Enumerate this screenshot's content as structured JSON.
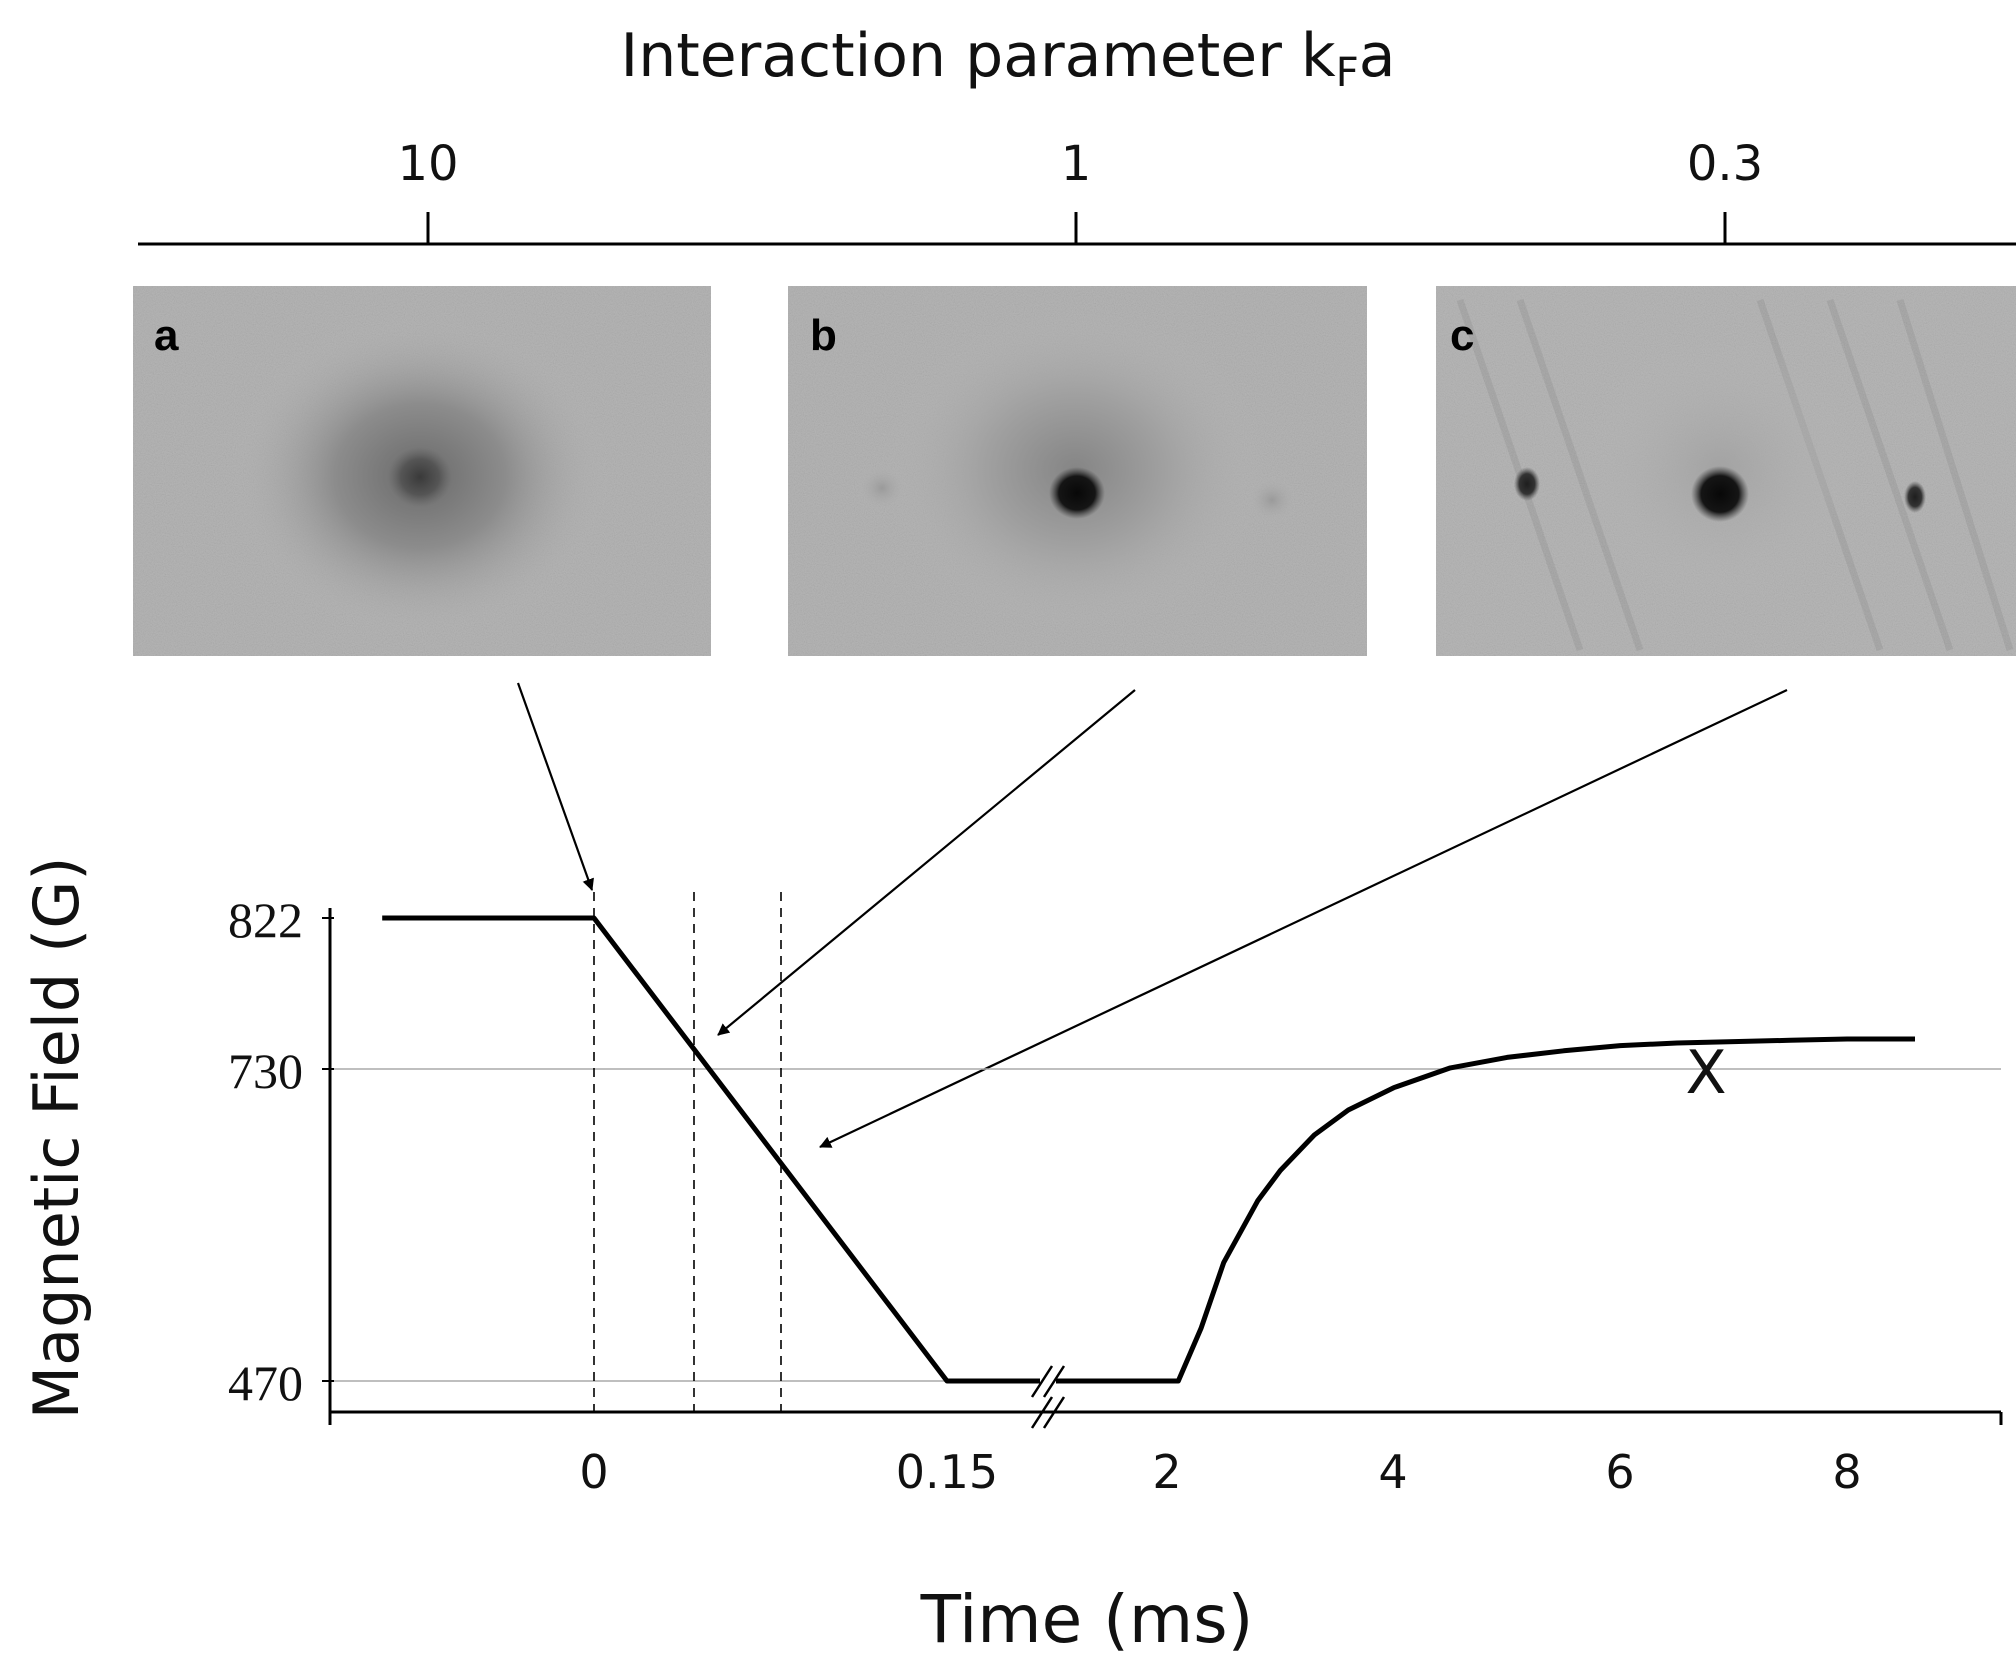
{
  "chart_data": {
    "type": "line",
    "top_axis": {
      "title_main": "Interaction parameter k",
      "title_sub": "F",
      "title_end": "a",
      "ticks": [
        {
          "label": "10",
          "value": 10
        },
        {
          "label": "1",
          "value": 1
        },
        {
          "label": "0.3",
          "value": 0.3
        }
      ]
    },
    "panels": [
      {
        "letter": "a",
        "satellite_peaks": false,
        "points_to_time": 0
      },
      {
        "letter": "b",
        "satellite_peaks": false,
        "points_to_time": 0.04
      },
      {
        "letter": "c",
        "satellite_peaks": true,
        "points_to_time": 0.07
      }
    ],
    "xlabel": "Time (ms)",
    "ylabel": "Magnetic Field (G)",
    "x_ticks": [
      "0",
      "0.15",
      "2",
      "4",
      "6",
      "8"
    ],
    "x_axis_break": "between 0.15 and 2",
    "y_ticks": [
      470,
      730,
      822
    ],
    "ylim": [
      455,
      830
    ],
    "reference_lines": [
      730,
      470
    ],
    "marker_dashed_times": [
      0,
      0.04,
      0.07
    ],
    "series": [
      {
        "segment": "ramp",
        "x": [
          -0.09,
          0,
          0.15
        ],
        "y": [
          822,
          822,
          470
        ]
      },
      {
        "segment": "hold-and-recover",
        "x": [
          1.9,
          2.1,
          2.3,
          2.5,
          2.8,
          3.0,
          3.3,
          3.6,
          4.0,
          4.5,
          5.0,
          5.5,
          6.0,
          6.5,
          7.0,
          7.5,
          8.0,
          8.6
        ],
        "y": [
          470,
          470,
          510,
          560,
          607,
          630,
          657,
          676,
          693,
          708,
          716,
          721,
          725,
          727,
          728,
          729,
          730,
          730
        ]
      }
    ],
    "annotations": [
      {
        "text": "X",
        "x": 6.8,
        "y": 729
      }
    ]
  }
}
